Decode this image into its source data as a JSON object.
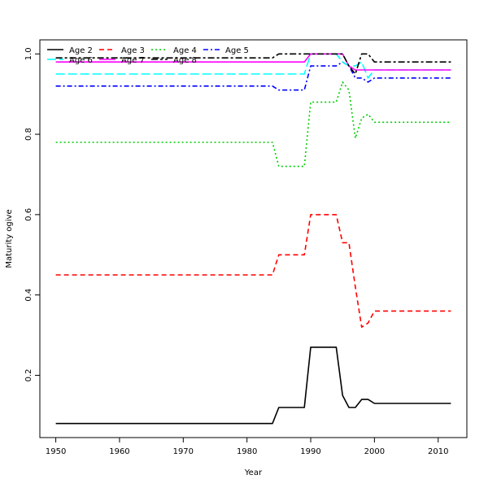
{
  "chart_data": {
    "type": "line",
    "xlabel": "Year",
    "ylabel": "Maturity ogive",
    "xlim": [
      1947.5,
      2014.5
    ],
    "ylim": [
      0.045,
      1.035
    ],
    "x_ticks": [
      1950,
      1960,
      1970,
      1980,
      1990,
      2000,
      2010
    ],
    "x_tick_labels": [
      "1950",
      "1960",
      "1970",
      "1980",
      "1990",
      "2000",
      "2010"
    ],
    "y_ticks": [
      0.2,
      0.4,
      0.6,
      0.8,
      1.0
    ],
    "y_tick_labels": [
      "0.2",
      "0.4",
      "0.6",
      "0.8",
      "1.0"
    ],
    "grid": false,
    "legend_position": "top-left",
    "series": [
      {
        "name": "Age 2",
        "color": "#000000",
        "dash": "solid",
        "points": [
          [
            1950,
            0.08
          ],
          [
            1984,
            0.08
          ],
          [
            1985,
            0.12
          ],
          [
            1989,
            0.12
          ],
          [
            1990,
            0.27
          ],
          [
            1994,
            0.27
          ],
          [
            1995,
            0.15
          ],
          [
            1996,
            0.12
          ],
          [
            1997,
            0.12
          ],
          [
            1998,
            0.14
          ],
          [
            1999,
            0.14
          ],
          [
            2000,
            0.13
          ],
          [
            2012,
            0.13
          ]
        ]
      },
      {
        "name": "Age 3",
        "color": "#ff0000",
        "dash": "dashed",
        "points": [
          [
            1950,
            0.45
          ],
          [
            1984,
            0.45
          ],
          [
            1985,
            0.5
          ],
          [
            1989,
            0.5
          ],
          [
            1990,
            0.6
          ],
          [
            1994,
            0.6
          ],
          [
            1995,
            0.53
          ],
          [
            1996,
            0.53
          ],
          [
            1997,
            0.42
          ],
          [
            1998,
            0.32
          ],
          [
            1999,
            0.33
          ],
          [
            2000,
            0.36
          ],
          [
            2012,
            0.36
          ]
        ]
      },
      {
        "name": "Age 4",
        "color": "#00cd00",
        "dash": "dotted",
        "points": [
          [
            1950,
            0.78
          ],
          [
            1984,
            0.78
          ],
          [
            1985,
            0.72
          ],
          [
            1989,
            0.72
          ],
          [
            1990,
            0.88
          ],
          [
            1994,
            0.88
          ],
          [
            1995,
            0.93
          ],
          [
            1996,
            0.91
          ],
          [
            1997,
            0.79
          ],
          [
            1998,
            0.84
          ],
          [
            1999,
            0.85
          ],
          [
            2000,
            0.83
          ],
          [
            2012,
            0.83
          ]
        ]
      },
      {
        "name": "Age 5",
        "color": "#0000ff",
        "dash": "dashdot",
        "points": [
          [
            1950,
            0.92
          ],
          [
            1984,
            0.92
          ],
          [
            1985,
            0.91
          ],
          [
            1989,
            0.91
          ],
          [
            1990,
            0.97
          ],
          [
            1994,
            0.97
          ],
          [
            1995,
            0.98
          ],
          [
            1996,
            0.97
          ],
          [
            1997,
            0.94
          ],
          [
            1998,
            0.94
          ],
          [
            1999,
            0.93
          ],
          [
            2000,
            0.94
          ],
          [
            2012,
            0.94
          ]
        ]
      },
      {
        "name": "Age 6",
        "color": "#00ffff",
        "dash": "longdash",
        "points": [
          [
            1950,
            0.95
          ],
          [
            1989,
            0.95
          ],
          [
            1990,
            1.0
          ],
          [
            1994,
            1.0
          ],
          [
            1995,
            0.98
          ],
          [
            1996,
            0.97
          ],
          [
            1997,
            0.97
          ],
          [
            1998,
            0.98
          ],
          [
            1999,
            0.94
          ],
          [
            2000,
            0.96
          ],
          [
            2012,
            0.96
          ]
        ]
      },
      {
        "name": "Age 7",
        "color": "#ff00ff",
        "dash": "solid",
        "points": [
          [
            1950,
            0.98
          ],
          [
            1989,
            0.98
          ],
          [
            1990,
            1.0
          ],
          [
            1995,
            1.0
          ],
          [
            1996,
            0.97
          ],
          [
            1997,
            0.96
          ],
          [
            1998,
            0.96
          ],
          [
            2012,
            0.96
          ]
        ]
      },
      {
        "name": "Age 8",
        "color": "#000000",
        "dash": "twodash",
        "points": [
          [
            1950,
            0.99
          ],
          [
            1984,
            0.99
          ],
          [
            1985,
            1.0
          ],
          [
            1994,
            1.0
          ],
          [
            1995,
            1.0
          ],
          [
            1996,
            0.97
          ],
          [
            1997,
            0.95
          ],
          [
            1998,
            1.0
          ],
          [
            1999,
            1.0
          ],
          [
            2000,
            0.98
          ],
          [
            2012,
            0.98
          ]
        ]
      }
    ]
  }
}
